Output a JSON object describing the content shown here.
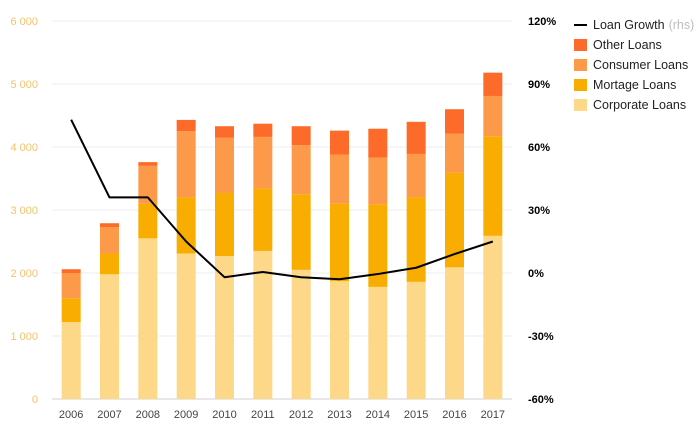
{
  "chart_data": {
    "type": "bar",
    "stacked": true,
    "categories": [
      "2006",
      "2007",
      "2008",
      "2009",
      "2010",
      "2011",
      "2012",
      "2013",
      "2014",
      "2015",
      "2016",
      "2017"
    ],
    "series": [
      {
        "name": "Corporate Loans",
        "color": "#fdd888",
        "values": [
          1220,
          1980,
          2550,
          2310,
          2270,
          2350,
          2050,
          1870,
          1780,
          1860,
          2090,
          2590
        ]
      },
      {
        "name": "Mortage Loans",
        "color": "#f8ad00",
        "values": [
          380,
          330,
          550,
          890,
          1000,
          990,
          1200,
          1230,
          1310,
          1340,
          1500,
          1580
        ]
      },
      {
        "name": "Consumer Loans",
        "color": "#fd9a4a",
        "values": [
          400,
          420,
          600,
          1050,
          880,
          820,
          780,
          780,
          740,
          690,
          620,
          640
        ]
      },
      {
        "name": "Other Loans",
        "color": "#fd6b2a",
        "values": [
          60,
          60,
          60,
          180,
          180,
          210,
          300,
          380,
          460,
          510,
          390,
          370
        ]
      }
    ],
    "line_series": {
      "name": "Loan Growth",
      "rhs_suffix": "(rhs)",
      "color": "#000000",
      "values": [
        73,
        36,
        36,
        15,
        -2,
        0.5,
        -2,
        -3,
        -0.5,
        2.5,
        9,
        15
      ]
    },
    "y_left": {
      "min": 0,
      "max": 6000,
      "ticks": [
        "0",
        "1 000",
        "2 000",
        "3 000",
        "4 000",
        "5 000",
        "6 000"
      ],
      "color": "#f5c26b"
    },
    "y_right": {
      "min": -60,
      "max": 120,
      "ticks": [
        "-60%",
        "-30%",
        "0%",
        "30%",
        "60%",
        "90%",
        "120%"
      ]
    },
    "grid": true,
    "legend_position": "top-right"
  }
}
